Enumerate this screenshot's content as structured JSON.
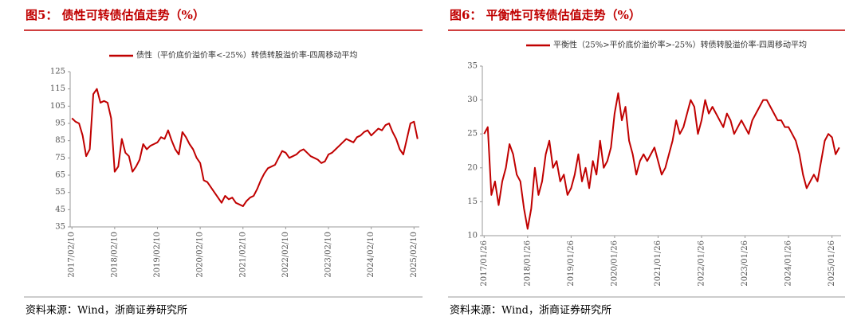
{
  "chart_data": [
    {
      "type": "line",
      "title": "图5：  债性可转债估值走势（%）",
      "source": "资料来源：Wind，浙商证券研究所",
      "categories": [
        "2017/02/10",
        null,
        null,
        null,
        null,
        null,
        null,
        null,
        null,
        null,
        null,
        null,
        "2018/02/10",
        null,
        null,
        null,
        null,
        null,
        null,
        null,
        null,
        null,
        null,
        null,
        "2019/02/10",
        null,
        null,
        null,
        null,
        null,
        null,
        null,
        null,
        null,
        null,
        null,
        "2020/02/10",
        null,
        null,
        null,
        null,
        null,
        null,
        null,
        null,
        null,
        null,
        null,
        "2021/02/10",
        null,
        null,
        null,
        null,
        null,
        null,
        null,
        null,
        null,
        null,
        null,
        "2022/02/10",
        null,
        null,
        null,
        null,
        null,
        null,
        null,
        null,
        null,
        null,
        null,
        "2023/02/10",
        null,
        null,
        null,
        null,
        null,
        null,
        null,
        null,
        null,
        null,
        null,
        "2024/02/10",
        null,
        null,
        null,
        null,
        null,
        null,
        null,
        null,
        null,
        null,
        null,
        "2025/02/10",
        null
      ],
      "series": [
        {
          "name": "债性（平价底价溢价率<-25%）转债转股溢价率-四周移动平均",
          "color": "#c00000",
          "values": [
            98,
            96,
            95,
            88,
            76,
            80,
            112,
            115,
            107,
            108,
            107,
            98,
            67,
            70,
            86,
            78,
            76,
            67,
            70,
            74,
            83,
            80,
            82,
            83,
            84,
            87,
            86,
            91,
            85,
            80,
            77,
            90,
            87,
            83,
            80,
            75,
            72,
            62,
            61,
            58,
            55,
            52,
            49,
            53,
            51,
            52,
            49,
            48,
            47,
            50,
            52,
            53,
            57,
            62,
            66,
            69,
            70,
            71,
            75,
            79,
            78,
            75,
            76,
            77,
            79,
            80,
            78,
            76,
            75,
            74,
            72,
            73,
            77,
            78,
            80,
            82,
            84,
            86,
            85,
            84,
            87,
            88,
            90,
            91,
            88,
            90,
            92,
            91,
            94,
            95,
            90,
            86,
            80,
            77,
            86,
            95,
            96,
            86
          ]
        }
      ],
      "ylim": [
        35,
        125
      ],
      "yticks": [
        35,
        45,
        55,
        65,
        75,
        85,
        95,
        105,
        115,
        125
      ]
    },
    {
      "type": "line",
      "title": "图6：  平衡性可转债估值走势（%）",
      "source": "资料来源：Wind，浙商证券研究所",
      "categories": [
        "2017/01/26",
        null,
        null,
        null,
        null,
        null,
        null,
        null,
        null,
        null,
        null,
        null,
        "2018/01/26",
        null,
        null,
        null,
        null,
        null,
        null,
        null,
        null,
        null,
        null,
        null,
        "2019/01/26",
        null,
        null,
        null,
        null,
        null,
        null,
        null,
        null,
        null,
        null,
        null,
        "2020/01/26",
        null,
        null,
        null,
        null,
        null,
        null,
        null,
        null,
        null,
        null,
        null,
        "2021/01/26",
        null,
        null,
        null,
        null,
        null,
        null,
        null,
        null,
        null,
        null,
        null,
        "2022/01/26",
        null,
        null,
        null,
        null,
        null,
        null,
        null,
        null,
        null,
        null,
        null,
        "2023/01/26",
        null,
        null,
        null,
        null,
        null,
        null,
        null,
        null,
        null,
        null,
        null,
        "2024/01/26",
        null,
        null,
        null,
        null,
        null,
        null,
        null,
        null,
        null,
        null,
        null,
        "2025/01/26",
        null,
        null
      ],
      "series": [
        {
          "name": "平衡性（25%>平价底价溢价率>-25%）转债转股溢价率-四周移动平均",
          "color": "#c00000",
          "values": [
            25,
            26,
            16,
            18,
            14.5,
            18,
            20,
            23.5,
            22,
            19,
            18,
            14,
            11,
            14,
            20,
            16,
            18,
            22,
            24,
            20,
            21,
            18,
            19,
            16,
            17,
            19,
            22,
            18,
            20,
            17,
            21,
            19,
            24,
            20,
            21,
            23,
            28,
            31,
            27,
            29,
            24,
            22,
            19,
            21,
            22,
            21,
            22,
            23,
            21,
            19,
            20,
            22,
            24,
            27,
            25,
            26,
            28,
            30,
            29,
            25,
            27,
            30,
            28,
            29,
            28,
            27,
            26,
            28,
            27,
            25,
            26,
            27,
            26,
            25,
            27,
            28,
            29,
            30,
            30,
            29,
            28,
            27,
            27,
            26,
            26,
            25,
            24,
            22,
            19,
            17,
            18,
            19,
            18,
            21,
            24,
            25,
            24.5,
            22,
            23
          ]
        }
      ],
      "ylim": [
        10,
        35
      ],
      "yticks": [
        10,
        15,
        20,
        25,
        30,
        35
      ]
    }
  ]
}
